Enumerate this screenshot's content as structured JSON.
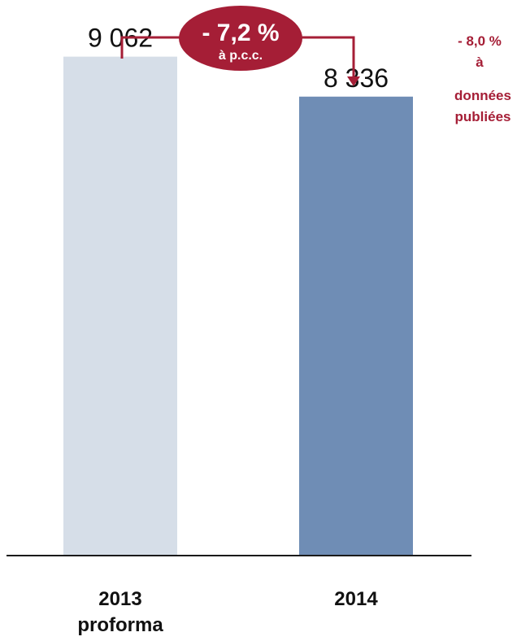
{
  "colors": {
    "accent": "#a51e36",
    "bar_2013": "#d6dee8",
    "bar_2014": "#6f8db5",
    "axis": "#1a1a1a"
  },
  "chart_data": {
    "type": "bar",
    "categories": [
      [
        "2013",
        "proforma"
      ],
      [
        "2014"
      ]
    ],
    "values": [
      9062,
      8336
    ],
    "value_labels": [
      "9 062",
      "8 336"
    ],
    "ylim": [
      0,
      9500
    ],
    "grid": false,
    "title": "",
    "xlabel": "",
    "ylabel": "",
    "annotations": {
      "change_badge": {
        "main": "- 7,2 %",
        "sub": "à p.c.c."
      },
      "side_note": [
        "- 8,0 %",
        "à",
        "données",
        "publiées"
      ]
    }
  }
}
